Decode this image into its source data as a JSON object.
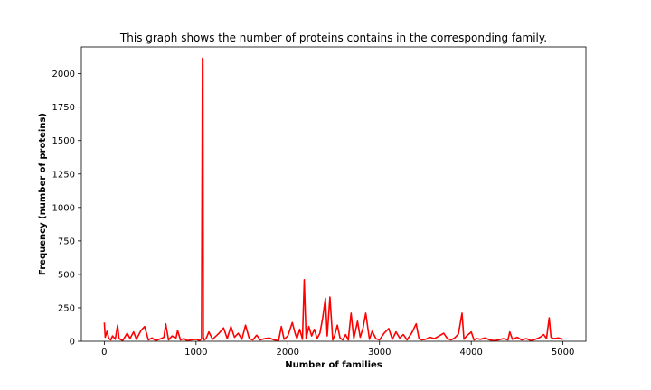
{
  "chart_data": {
    "type": "line",
    "title": "This graph shows the number of proteins contains in the corresponding family.",
    "xlabel": "Number of families",
    "ylabel": "Frequency (number of proteins)",
    "xlim": [
      -250,
      5250
    ],
    "ylim": [
      0,
      2200
    ],
    "xticks": [
      0,
      1000,
      2000,
      3000,
      4000,
      5000
    ],
    "yticks": [
      0,
      250,
      500,
      750,
      1000,
      1250,
      1500,
      1750,
      2000
    ],
    "grid": false,
    "series": [
      {
        "color": "#ff0000",
        "x": [
          0,
          10,
          30,
          50,
          70,
          90,
          120,
          145,
          160,
          200,
          250,
          280,
          320,
          350,
          400,
          440,
          480,
          520,
          560,
          600,
          650,
          670,
          700,
          740,
          780,
          800,
          830,
          870,
          900,
          950,
          1000,
          1040,
          1060,
          1070,
          1075,
          1080,
          1090,
          1110,
          1140,
          1180,
          1220,
          1250,
          1300,
          1340,
          1380,
          1420,
          1460,
          1500,
          1540,
          1580,
          1620,
          1660,
          1700,
          1750,
          1800,
          1850,
          1900,
          1930,
          1960,
          2000,
          2050,
          2080,
          2100,
          2130,
          2160,
          2180,
          2200,
          2230,
          2260,
          2290,
          2320,
          2350,
          2380,
          2410,
          2430,
          2460,
          2490,
          2510,
          2540,
          2570,
          2600,
          2630,
          2660,
          2690,
          2720,
          2760,
          2790,
          2820,
          2850,
          2890,
          2920,
          2960,
          3000,
          3050,
          3100,
          3140,
          3180,
          3220,
          3260,
          3300,
          3350,
          3400,
          3430,
          3460,
          3500,
          3550,
          3600,
          3650,
          3700,
          3740,
          3780,
          3820,
          3860,
          3900,
          3920,
          3950,
          4000,
          4030,
          4060,
          4100,
          4150,
          4200,
          4250,
          4300,
          4350,
          4400,
          4420,
          4450,
          4500,
          4550,
          4600,
          4650,
          4700,
          4750,
          4790,
          4820,
          4850,
          4870,
          4900,
          4950,
          5000
        ],
        "y": [
          140,
          30,
          75,
          20,
          10,
          40,
          15,
          120,
          20,
          5,
          60,
          20,
          70,
          15,
          80,
          110,
          10,
          25,
          5,
          15,
          30,
          130,
          10,
          40,
          20,
          80,
          10,
          20,
          5,
          10,
          15,
          5,
          20,
          2115,
          2110,
          30,
          10,
          20,
          70,
          15,
          40,
          60,
          100,
          20,
          110,
          30,
          60,
          15,
          120,
          20,
          10,
          45,
          10,
          20,
          25,
          10,
          5,
          110,
          15,
          40,
          140,
          60,
          20,
          90,
          15,
          460,
          20,
          110,
          40,
          90,
          20,
          60,
          170,
          320,
          40,
          330,
          10,
          40,
          120,
          25,
          10,
          50,
          10,
          210,
          20,
          150,
          30,
          100,
          210,
          15,
          75,
          20,
          10,
          60,
          95,
          15,
          70,
          25,
          50,
          10,
          60,
          130,
          20,
          10,
          15,
          30,
          20,
          40,
          60,
          20,
          10,
          25,
          55,
          210,
          15,
          40,
          70,
          10,
          20,
          15,
          25,
          10,
          5,
          10,
          20,
          10,
          70,
          15,
          30,
          10,
          20,
          5,
          15,
          30,
          50,
          20,
          175,
          30,
          20,
          25,
          15
        ]
      }
    ]
  }
}
